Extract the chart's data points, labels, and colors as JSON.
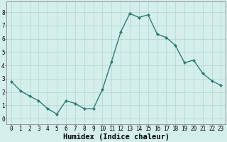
{
  "x": [
    0,
    1,
    2,
    3,
    4,
    5,
    6,
    7,
    8,
    9,
    10,
    11,
    12,
    13,
    14,
    15,
    16,
    17,
    18,
    19,
    20,
    21,
    22,
    23
  ],
  "y": [
    2.8,
    2.1,
    1.7,
    1.35,
    0.75,
    0.35,
    1.35,
    1.15,
    0.75,
    0.75,
    2.2,
    4.3,
    6.5,
    7.9,
    7.6,
    7.8,
    6.35,
    6.1,
    5.5,
    4.2,
    4.4,
    3.4,
    2.85,
    2.5
  ],
  "line_color": "#2e7d6e",
  "marker": "D",
  "marker_size": 2.2,
  "linewidth": 1.0,
  "bg_color": "#d4eeec",
  "grid_color": "#b8d8d5",
  "grid_color_minor": "#c8e4e2",
  "xlabel": "Humidex (Indice chaleur)",
  "xlabel_fontsize": 7.5,
  "xlabel_bold": true,
  "xlim": [
    -0.5,
    23.5
  ],
  "ylim": [
    -0.4,
    8.8
  ],
  "yticks": [
    0,
    1,
    2,
    3,
    4,
    5,
    6,
    7,
    8
  ],
  "xtick_labels": [
    "0",
    "1",
    "2",
    "3",
    "4",
    "5",
    "6",
    "7",
    "8",
    "9",
    "10",
    "11",
    "12",
    "13",
    "14",
    "15",
    "16",
    "17",
    "18",
    "19",
    "20",
    "21",
    "22",
    "23"
  ],
  "tick_fontsize": 5.5,
  "spine_color": "#888888"
}
